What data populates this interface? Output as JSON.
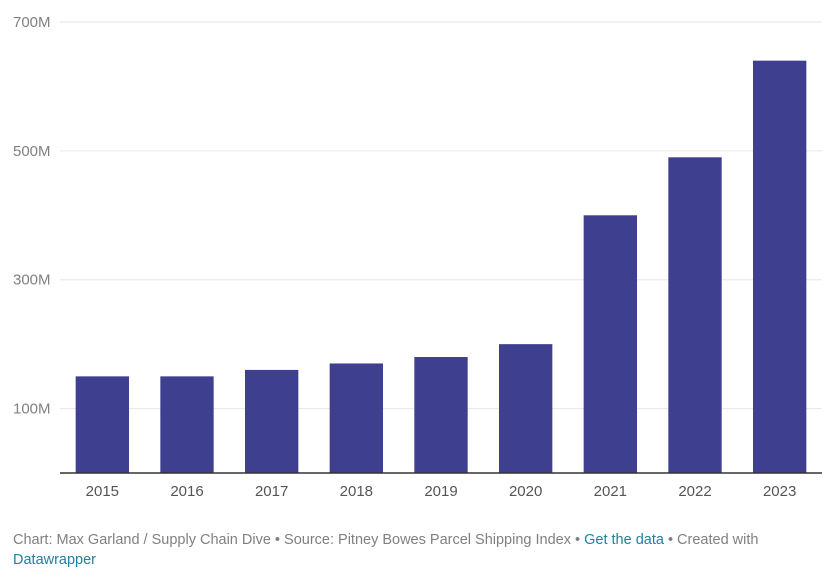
{
  "chart_data": {
    "type": "bar",
    "categories": [
      "2015",
      "2016",
      "2017",
      "2018",
      "2019",
      "2020",
      "2021",
      "2022",
      "2023"
    ],
    "values": [
      150,
      150,
      160,
      170,
      180,
      200,
      400,
      490,
      640
    ],
    "unit": "M",
    "ylim": [
      0,
      700
    ],
    "yticks": [
      100,
      300,
      500,
      700
    ],
    "ytick_labels": [
      "100M",
      "300M",
      "500M",
      "700M"
    ],
    "bar_color": "#3f3f8f",
    "grid": true,
    "title": "",
    "xlabel": "",
    "ylabel": ""
  },
  "footer": {
    "credit_text": "Chart: Max Garland / Supply Chain Dive • Source: Pitney Bowes Parcel Shipping Index • ",
    "get_data_link": "Get the data",
    "created_with_text": " • Created with",
    "datawrapper_link": "Datawrapper"
  }
}
